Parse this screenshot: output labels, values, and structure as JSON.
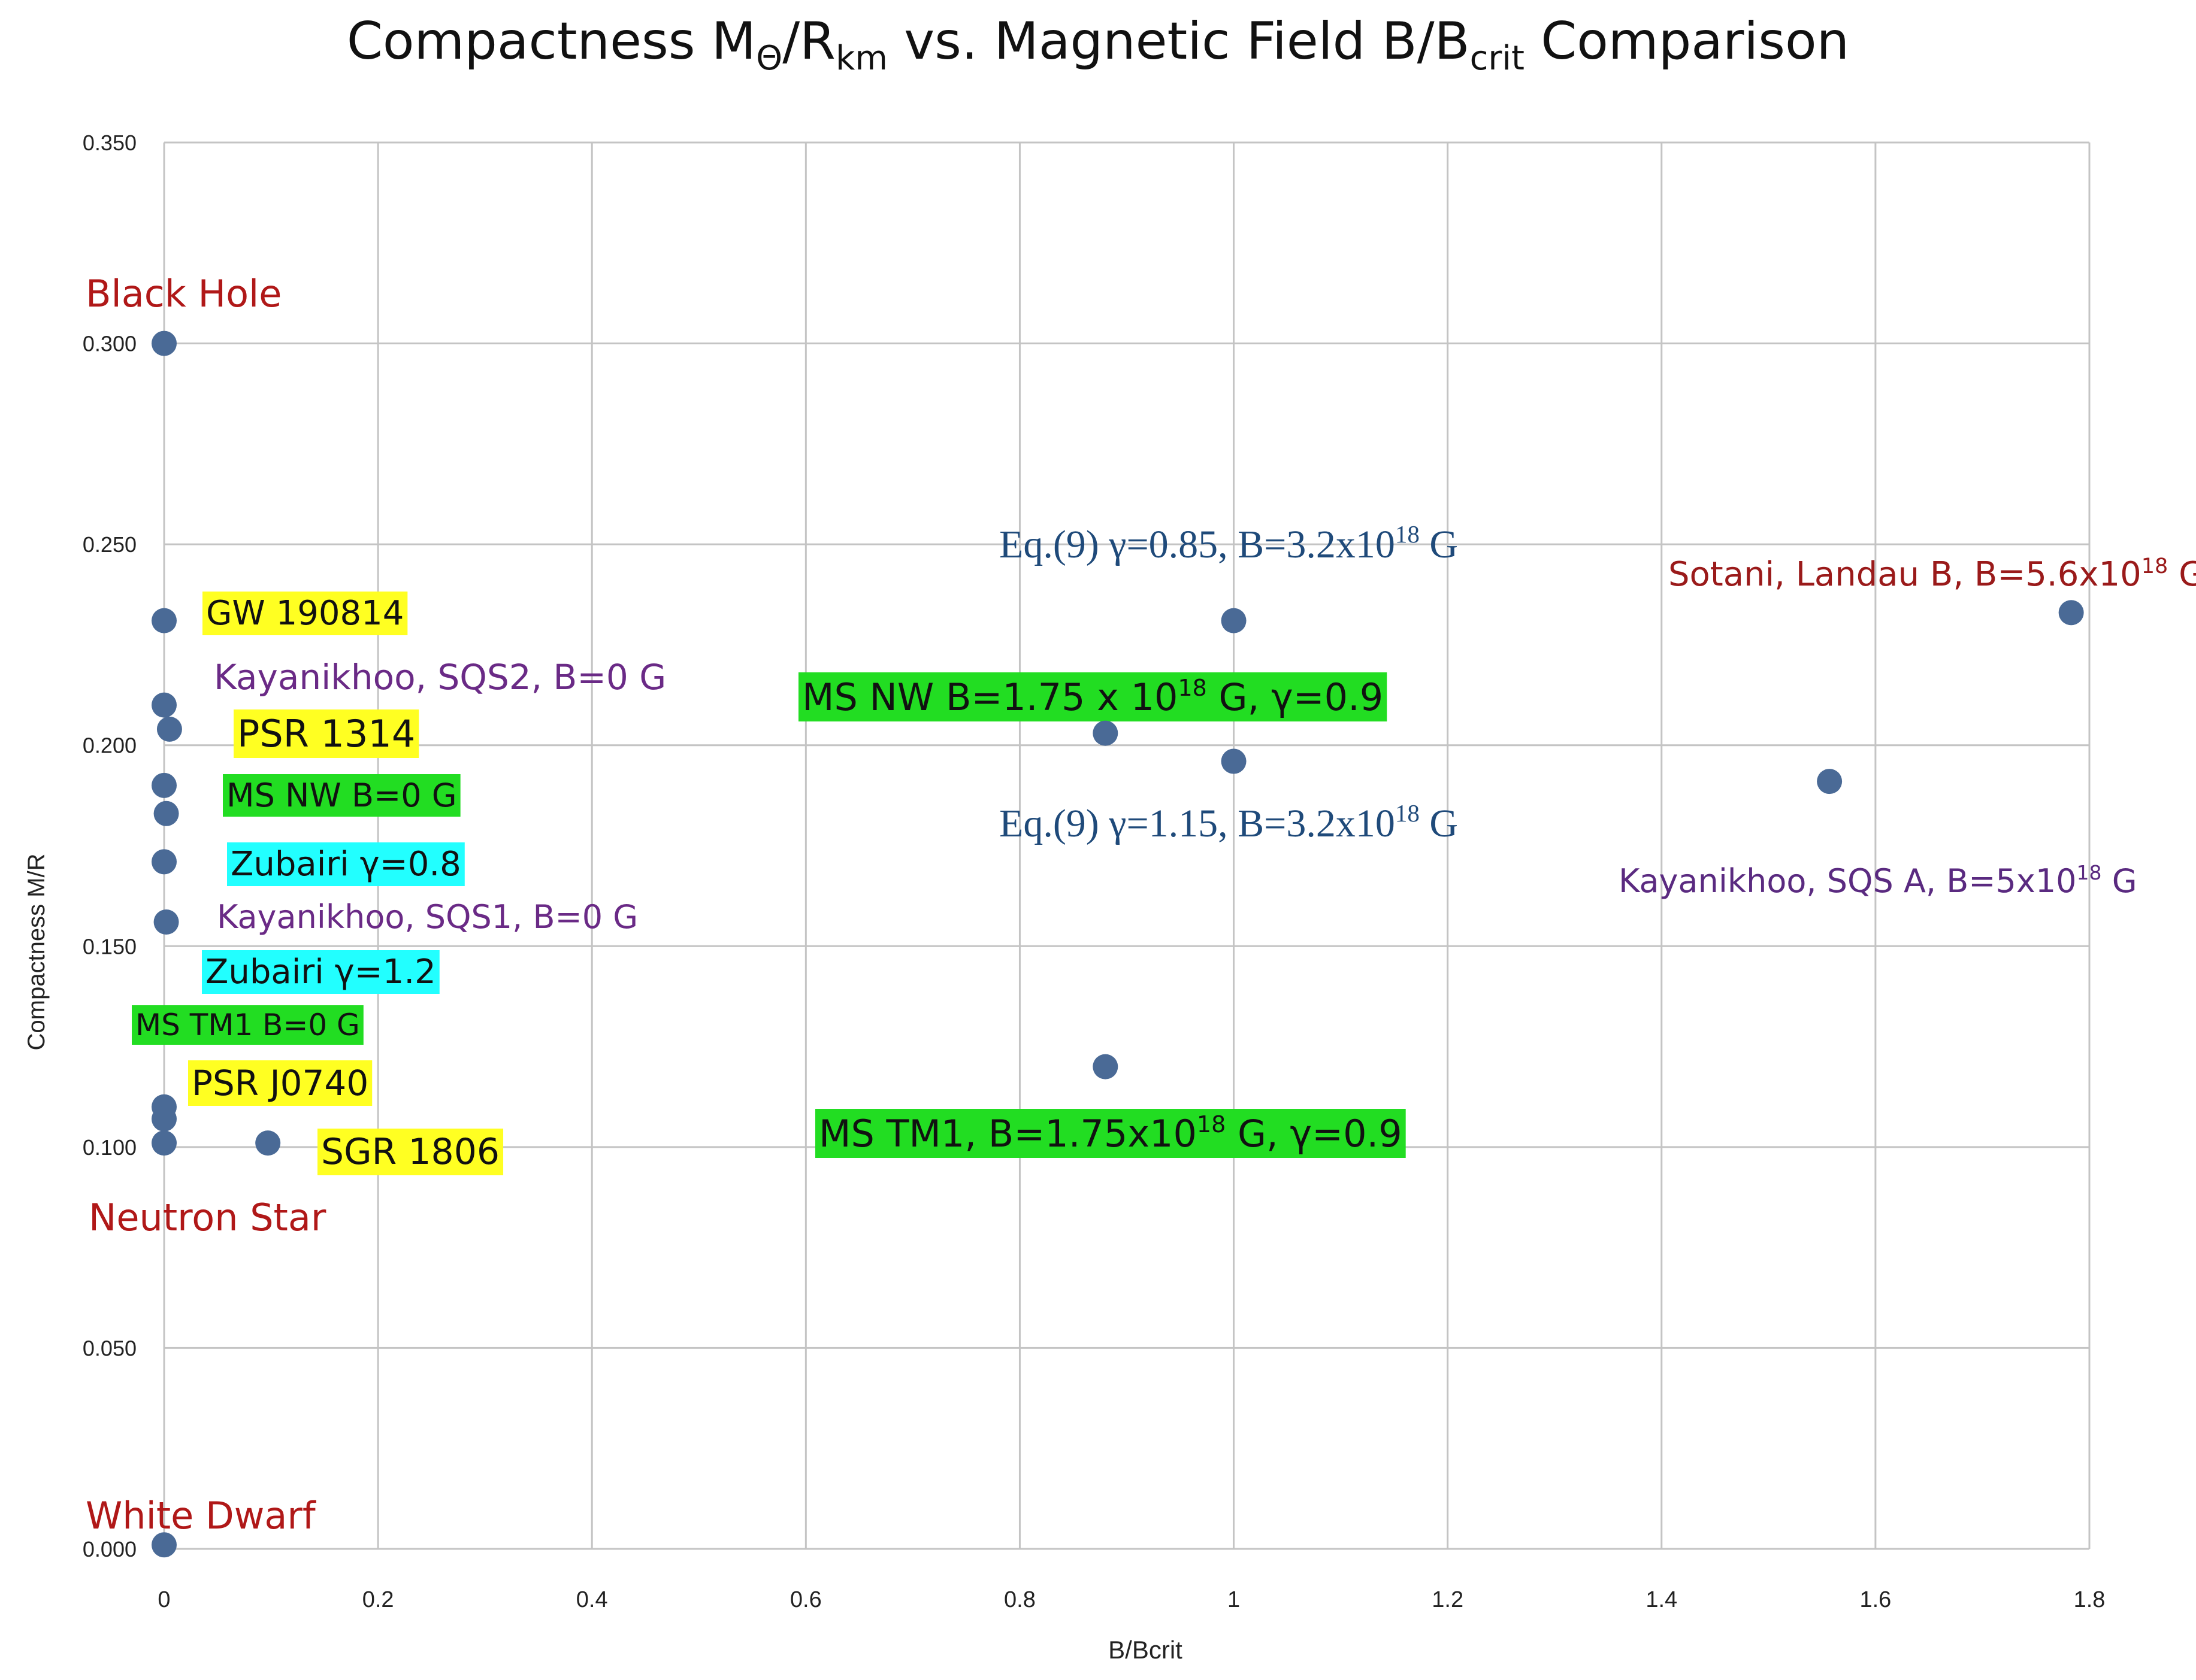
{
  "chart_data": {
    "type": "scatter",
    "title": {
      "t1": "Compactness M",
      "s1": "Θ",
      "t2": "/R",
      "s2": "km",
      "t3": " vs. Magnetic Field B/B",
      "s3": "crit",
      "t4": " Comparison"
    },
    "xlabel": "B/Bcrit",
    "ylabel": "Compactness M/R",
    "xlim": [
      0,
      1.8
    ],
    "ylim": [
      0,
      0.35
    ],
    "x_ticks": [
      "0",
      "0.2",
      "0.4",
      "0.6",
      "0.8",
      "1",
      "1.2",
      "1.4",
      "1.6",
      "1.8"
    ],
    "y_ticks": [
      "0.000",
      "0.050",
      "0.100",
      "0.150",
      "0.200",
      "0.250",
      "0.300",
      "0.350"
    ],
    "grid": true,
    "marker_color": "#4a6a96",
    "points": [
      {
        "x": 0,
        "y": 0.3
      },
      {
        "x": 0,
        "y": 0.231
      },
      {
        "x": 0,
        "y": 0.21
      },
      {
        "x": 0.005,
        "y": 0.204
      },
      {
        "x": 0,
        "y": 0.19
      },
      {
        "x": 0.002,
        "y": 0.183
      },
      {
        "x": 0,
        "y": 0.171
      },
      {
        "x": 0.002,
        "y": 0.156
      },
      {
        "x": 0,
        "y": 0.11
      },
      {
        "x": 0,
        "y": 0.107
      },
      {
        "x": 0,
        "y": 0.101
      },
      {
        "x": 0.097,
        "y": 0.101
      },
      {
        "x": 0,
        "y": 0.001
      },
      {
        "x": 0.88,
        "y": 0.203
      },
      {
        "x": 0.88,
        "y": 0.12
      },
      {
        "x": 1.0,
        "y": 0.231
      },
      {
        "x": 1.0,
        "y": 0.196
      },
      {
        "x": 1.557,
        "y": 0.191
      },
      {
        "x": 1.783,
        "y": 0.233
      }
    ],
    "annotations": [
      {
        "text": "Black Hole",
        "color": "#b01818",
        "bg": "",
        "font": "sans"
      },
      {
        "text": "GW 190814",
        "color": "#111111",
        "bg": "#ffff22",
        "font": "sans"
      },
      {
        "text": "Kayanikhoo, SQS2, B=0 G",
        "color": "#6a2a86",
        "bg": "",
        "font": "sans"
      },
      {
        "text": "PSR 1314",
        "color": "#111111",
        "bg": "#ffff22",
        "font": "sans"
      },
      {
        "text": "MS NW B=0 G",
        "color": "#111111",
        "bg": "#22dd22",
        "font": "sans"
      },
      {
        "text": "Zubairi γ=0.8",
        "color": "#111111",
        "bg": "#22ffff",
        "font": "sans"
      },
      {
        "text": "Kayanikhoo, SQS1, B=0 G",
        "color": "#6a2a86",
        "bg": "",
        "font": "sans"
      },
      {
        "text": "Zubairi γ=1.2",
        "color": "#111111",
        "bg": "#22ffff",
        "font": "sans"
      },
      {
        "text": "MS TM1 B=0 G",
        "color": "#111111",
        "bg": "#22dd22",
        "font": "sans"
      },
      {
        "text": "PSR J0740",
        "color": "#111111",
        "bg": "#ffff22",
        "font": "sans"
      },
      {
        "text": "SGR 1806",
        "color": "#111111",
        "bg": "#ffff22",
        "font": "sans"
      },
      {
        "text": "Neutron Star",
        "color": "#b01818",
        "bg": "",
        "font": "sans"
      },
      {
        "text": "White Dwarf",
        "color": "#b01818",
        "bg": "",
        "font": "sans"
      },
      {
        "text": "Eq.(9) γ=0.85, B=3.2x10",
        "sup": "18",
        "tail": " G",
        "color": "#1f4a7a",
        "bg": "",
        "font": "serif"
      },
      {
        "text": "MS NW B=1.75 x 10",
        "sup": "18",
        "tail": " G, γ=0.9",
        "color": "#111111",
        "bg": "#22dd22",
        "font": "sans"
      },
      {
        "text": "Eq.(9) γ=1.15, B=3.2x10",
        "sup": "18",
        "tail": " G",
        "color": "#1f4a7a",
        "bg": "",
        "font": "serif"
      },
      {
        "text": "MS TM1, B=1.75x10",
        "sup": "18",
        "tail": " G, γ=0.9",
        "color": "#111111",
        "bg": "#22dd22",
        "font": "sans"
      },
      {
        "text": "Sotani, Landau B, B=5.6x10",
        "sup": "18",
        "tail": " G",
        "color": "#9a1a1a",
        "bg": "",
        "font": "sans"
      },
      {
        "text": "Kayanikhoo, SQS A, B=5x10",
        "sup": "18",
        "tail": " G",
        "color": "#5a2a80",
        "bg": "",
        "font": "sans"
      }
    ]
  }
}
